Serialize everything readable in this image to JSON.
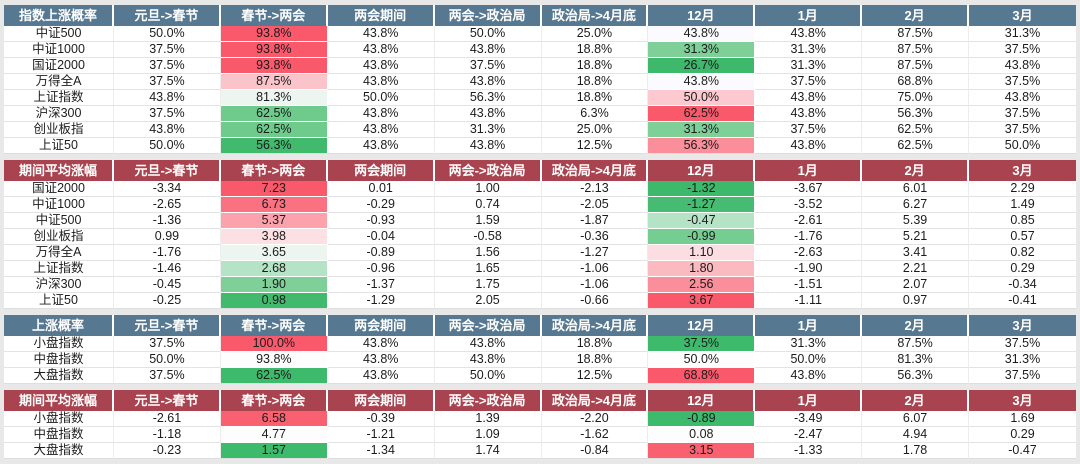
{
  "page": {
    "background": "#E8E8E8"
  },
  "themes": {
    "blue": {
      "header_bg": "#567891",
      "header_text": "#FFFFFF"
    },
    "maroon": {
      "header_bg": "#A8434F",
      "header_text": "#FFFFFF"
    }
  },
  "status_colors": {
    "strong_red": "#F9596B",
    "strong_green": "#3EBA6D",
    "neutral_white": "#FFFFFF"
  },
  "chart_data": [
    {
      "type": "table",
      "key": "index-up-probability",
      "title": "指数上涨概率",
      "theme": "blue",
      "columns": [
        "元旦->春节",
        "春节->两会",
        "两会期间",
        "两会->政治局",
        "政治局->4月底",
        "12月",
        "1月",
        "2月",
        "3月"
      ],
      "rows": [
        {
          "label": "中证500",
          "values": [
            "50.0%",
            "93.8%",
            "43.8%",
            "50.0%",
            "25.0%",
            "43.8%",
            "43.8%",
            "87.5%",
            "31.3%"
          ],
          "cell_colors": [
            "",
            "#F9596B",
            "",
            "",
            "",
            "#FBFAFE",
            "",
            "",
            ""
          ]
        },
        {
          "label": "中证1000",
          "values": [
            "37.5%",
            "93.8%",
            "43.8%",
            "43.8%",
            "18.8%",
            "31.3%",
            "31.3%",
            "87.5%",
            "37.5%"
          ],
          "cell_colors": [
            "",
            "#F9596B",
            "",
            "",
            "",
            "#7FD098",
            "",
            "",
            ""
          ]
        },
        {
          "label": "国证2000",
          "values": [
            "37.5%",
            "93.8%",
            "43.8%",
            "37.5%",
            "18.8%",
            "26.7%",
            "31.3%",
            "87.5%",
            "43.8%"
          ],
          "cell_colors": [
            "",
            "#F9596B",
            "",
            "",
            "",
            "#3EB96C",
            "",
            "",
            ""
          ]
        },
        {
          "label": "万得全A",
          "values": [
            "37.5%",
            "87.5%",
            "43.8%",
            "43.8%",
            "18.8%",
            "43.8%",
            "37.5%",
            "68.8%",
            "37.5%"
          ],
          "cell_colors": [
            "",
            "#FBC4CA",
            "",
            "",
            "",
            "#FBFAFE",
            "",
            "",
            ""
          ]
        },
        {
          "label": "上证指数",
          "values": [
            "43.8%",
            "81.3%",
            "50.0%",
            "56.3%",
            "18.8%",
            "50.0%",
            "43.8%",
            "75.0%",
            "43.8%"
          ],
          "cell_colors": [
            "",
            "#EDF5F0",
            "",
            "",
            "",
            "#FBC9CF",
            "",
            "",
            ""
          ]
        },
        {
          "label": "沪深300",
          "values": [
            "37.5%",
            "62.5%",
            "43.8%",
            "43.8%",
            "6.3%",
            "62.5%",
            "43.8%",
            "56.3%",
            "37.5%"
          ],
          "cell_colors": [
            "",
            "#6FCB8C",
            "",
            "",
            "",
            "#F9596B",
            "",
            "",
            ""
          ]
        },
        {
          "label": "创业板指",
          "values": [
            "43.8%",
            "62.5%",
            "43.8%",
            "31.3%",
            "25.0%",
            "31.3%",
            "37.5%",
            "62.5%",
            "37.5%"
          ],
          "cell_colors": [
            "",
            "#6FCB8C",
            "",
            "",
            "",
            "#7FD098",
            "",
            "",
            ""
          ]
        },
        {
          "label": "上证50",
          "values": [
            "50.0%",
            "56.3%",
            "43.8%",
            "43.8%",
            "12.5%",
            "56.3%",
            "43.8%",
            "62.5%",
            "50.0%"
          ],
          "cell_colors": [
            "",
            "#41BA6E",
            "",
            "",
            "",
            "#FA8E9B",
            "",
            "",
            ""
          ]
        }
      ]
    },
    {
      "type": "table",
      "key": "index-period-avg-change",
      "title": "期间平均涨幅",
      "theme": "maroon",
      "columns": [
        "元旦->春节",
        "春节->两会",
        "两会期间",
        "两会->政治局",
        "政治局->4月底",
        "12月",
        "1月",
        "2月",
        "3月"
      ],
      "rows": [
        {
          "label": "国证2000",
          "values": [
            "-3.34",
            "7.23",
            "0.01",
            "1.00",
            "-2.13",
            "-1.32",
            "-3.67",
            "6.01",
            "2.29"
          ],
          "cell_colors": [
            "",
            "#F9596B",
            "",
            "",
            "",
            "#3CB96B",
            "",
            "",
            ""
          ]
        },
        {
          "label": "中证1000",
          "values": [
            "-2.65",
            "6.73",
            "-0.29",
            "0.74",
            "-2.05",
            "-1.27",
            "-3.52",
            "6.27",
            "1.49"
          ],
          "cell_colors": [
            "",
            "#FA7181",
            "",
            "",
            "",
            "#45BC71",
            "",
            "",
            ""
          ]
        },
        {
          "label": "中证500",
          "values": [
            "-1.36",
            "5.37",
            "-0.93",
            "1.59",
            "-1.87",
            "-0.47",
            "-2.61",
            "5.39",
            "0.85"
          ],
          "cell_colors": [
            "",
            "#FBA2AC",
            "",
            "",
            "",
            "#B5E3C5",
            "",
            "",
            ""
          ]
        },
        {
          "label": "创业板指",
          "values": [
            "0.99",
            "3.98",
            "-0.04",
            "-0.58",
            "-0.36",
            "-0.99",
            "-1.76",
            "5.21",
            "0.57"
          ],
          "cell_colors": [
            "",
            "#FCE0E3",
            "",
            "",
            "",
            "#76CD91",
            "",
            "",
            ""
          ]
        },
        {
          "label": "万得全A",
          "values": [
            "-1.76",
            "3.65",
            "-0.89",
            "1.56",
            "-1.27",
            "1.10",
            "-2.63",
            "3.41",
            "0.82"
          ],
          "cell_colors": [
            "",
            "#EDF5F0",
            "",
            "",
            "",
            "#FCDDE1",
            "",
            "",
            ""
          ]
        },
        {
          "label": "上证指数",
          "values": [
            "-1.46",
            "2.68",
            "-0.96",
            "1.65",
            "-1.06",
            "1.80",
            "-1.90",
            "2.21",
            "0.29"
          ],
          "cell_colors": [
            "",
            "#B5E3C5",
            "",
            "",
            "",
            "#FBB9C0",
            "",
            "",
            ""
          ]
        },
        {
          "label": "沪深300",
          "values": [
            "-0.45",
            "1.90",
            "-1.37",
            "1.75",
            "-1.06",
            "2.56",
            "-1.51",
            "2.07",
            "-0.34"
          ],
          "cell_colors": [
            "",
            "#7FD098",
            "",
            "",
            "",
            "#FA8E9B",
            "",
            "",
            ""
          ]
        },
        {
          "label": "上证50",
          "values": [
            "-0.25",
            "0.98",
            "-1.29",
            "2.05",
            "-0.66",
            "3.67",
            "-1.11",
            "0.97",
            "-0.41"
          ],
          "cell_colors": [
            "",
            "#41BA6E",
            "",
            "",
            "",
            "#F9596B",
            "",
            "",
            ""
          ]
        }
      ]
    },
    {
      "type": "table",
      "key": "size-up-probability",
      "title": "上涨概率",
      "theme": "blue",
      "columns": [
        "元旦->春节",
        "春节->两会",
        "两会期间",
        "两会->政治局",
        "政治局->4月底",
        "12月",
        "1月",
        "2月",
        "3月"
      ],
      "rows": [
        {
          "label": "小盘指数",
          "values": [
            "37.5%",
            "100.0%",
            "43.8%",
            "43.8%",
            "18.8%",
            "37.5%",
            "31.3%",
            "87.5%",
            "37.5%"
          ],
          "cell_colors": [
            "",
            "#F9596B",
            "",
            "",
            "",
            "#3EBA6D",
            "",
            "",
            ""
          ]
        },
        {
          "label": "中盘指数",
          "values": [
            "50.0%",
            "93.8%",
            "43.8%",
            "43.8%",
            "18.8%",
            "50.0%",
            "50.0%",
            "81.3%",
            "31.3%"
          ],
          "cell_colors": [
            "",
            "#FDFDFE",
            "",
            "",
            "",
            "#FDFDFE",
            "",
            "",
            ""
          ]
        },
        {
          "label": "大盘指数",
          "values": [
            "37.5%",
            "62.5%",
            "43.8%",
            "50.0%",
            "12.5%",
            "68.8%",
            "43.8%",
            "56.3%",
            "37.5%"
          ],
          "cell_colors": [
            "",
            "#3EBA6D",
            "",
            "",
            "",
            "#F9596B",
            "",
            "",
            ""
          ]
        }
      ]
    },
    {
      "type": "table",
      "key": "size-period-avg-change",
      "title": "期间平均涨幅",
      "theme": "maroon",
      "columns": [
        "元旦->春节",
        "春节->两会",
        "两会期间",
        "两会->政治局",
        "政治局->4月底",
        "12月",
        "1月",
        "2月",
        "3月"
      ],
      "rows": [
        {
          "label": "小盘指数",
          "values": [
            "-2.61",
            "6.58",
            "-0.39",
            "1.39",
            "-2.20",
            "-0.89",
            "-3.49",
            "6.07",
            "1.69"
          ],
          "cell_colors": [
            "",
            "#FA6170",
            "",
            "",
            "",
            "#3EBA6D",
            "",
            "",
            ""
          ]
        },
        {
          "label": "中盘指数",
          "values": [
            "-1.18",
            "4.77",
            "-1.21",
            "1.09",
            "-1.62",
            "0.08",
            "-2.47",
            "4.94",
            "0.29"
          ],
          "cell_colors": [
            "",
            "#FDFDFE",
            "",
            "",
            "",
            "#FDFDFE",
            "",
            "",
            ""
          ]
        },
        {
          "label": "大盘指数",
          "values": [
            "-0.23",
            "1.57",
            "-1.34",
            "1.74",
            "-0.84",
            "3.15",
            "-1.33",
            "1.78",
            "-0.47"
          ],
          "cell_colors": [
            "",
            "#3EBA6D",
            "",
            "",
            "",
            "#FA6170",
            "",
            "",
            ""
          ]
        }
      ]
    }
  ]
}
